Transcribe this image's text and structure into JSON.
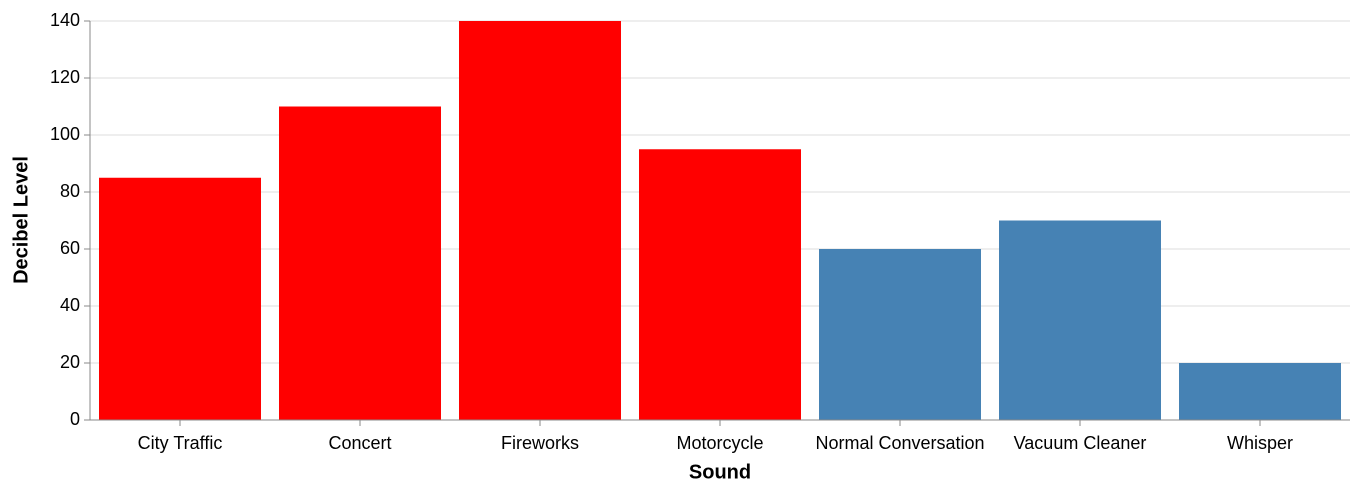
{
  "chart_data": {
    "type": "bar",
    "x_label": "Sound",
    "y_label": "Decibel Level",
    "categories": [
      "City Traffic",
      "Concert",
      "Fireworks",
      "Motorcycle",
      "Normal Conversation",
      "Vacuum Cleaner",
      "Whisper"
    ],
    "values": [
      85,
      110,
      140,
      95,
      60,
      70,
      20
    ],
    "colors": [
      "#ff0000",
      "#ff0000",
      "#ff0000",
      "#ff0000",
      "#4682b4",
      "#4682b4",
      "#4682b4"
    ],
    "ylim": [
      0,
      140
    ],
    "yticks": [
      0,
      20,
      40,
      60,
      80,
      100,
      120,
      140
    ],
    "grid": true
  }
}
